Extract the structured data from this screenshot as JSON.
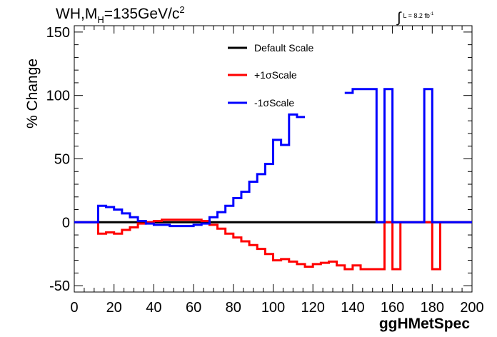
{
  "header": {
    "title_prefix": "WH,M",
    "title_sub": "H",
    "title_value": "=135GeV/c",
    "title_sup": "2",
    "lumi_integral": "∫",
    "lumi_text": "L = 8.2 fb",
    "lumi_sup": "-1"
  },
  "legend": {
    "items": [
      {
        "label": "Default Scale",
        "color": "#000000"
      },
      {
        "label": "+1σScale",
        "color": "#ff0000"
      },
      {
        "label": "-1σScale",
        "color": "#0000ff"
      }
    ]
  },
  "colors": {
    "default": "#000000",
    "plus": "#ff0000",
    "minus": "#0000ff",
    "frame": "#000000"
  },
  "chart_data": {
    "type": "line",
    "title": "WH,M_H=135GeV/c^2",
    "xlabel": "ggHMetSpec",
    "ylabel": "% Change",
    "xlim": [
      0,
      200
    ],
    "ylim": [
      -55,
      155
    ],
    "x_ticks": [
      0,
      20,
      40,
      60,
      80,
      100,
      120,
      140,
      160,
      180,
      200
    ],
    "y_ticks": [
      -50,
      0,
      50,
      100,
      150
    ],
    "grid": false,
    "legend_position": "top-center",
    "bin_edges": [
      0,
      4,
      8,
      12,
      16,
      20,
      24,
      28,
      32,
      36,
      40,
      44,
      48,
      52,
      56,
      60,
      64,
      68,
      72,
      76,
      80,
      84,
      88,
      92,
      96,
      100,
      104,
      108,
      112,
      116,
      120,
      124,
      128,
      132,
      136,
      140,
      144,
      148,
      152,
      156,
      160,
      164,
      168,
      172,
      176,
      180,
      184,
      188,
      192,
      196,
      200
    ],
    "series": [
      {
        "name": "Default Scale",
        "values": [
          0,
          0,
          0,
          0,
          0,
          0,
          0,
          0,
          0,
          0,
          0,
          0,
          0,
          0,
          0,
          0,
          0,
          0,
          0,
          0,
          0,
          0,
          0,
          0,
          0,
          0,
          0,
          0,
          0,
          0,
          0,
          0,
          0,
          0,
          0,
          0,
          0,
          0,
          0,
          0,
          0,
          0,
          0,
          0,
          0,
          0,
          0,
          0,
          0,
          0
        ]
      },
      {
        "name": "+1σScale",
        "values": [
          0,
          0,
          0,
          -9,
          -8,
          -9,
          -6,
          -4,
          -1,
          0,
          1,
          2,
          2,
          2,
          2,
          2,
          1,
          -2,
          -5,
          -9,
          -12,
          -15,
          -18,
          -21,
          -25,
          -30,
          -29,
          -31,
          -33,
          -35,
          -33,
          -32,
          -31,
          -34,
          -37,
          -34,
          -37,
          -37,
          -37,
          0,
          -37,
          0,
          0,
          0,
          0,
          -37,
          0,
          0,
          0,
          0
        ]
      },
      {
        "name": "-1σScale",
        "values": [
          0,
          0,
          0,
          13,
          12,
          10,
          7,
          4,
          1,
          -1,
          -2,
          -2,
          -3,
          -3,
          -3,
          -2,
          -1,
          4,
          8,
          13,
          19,
          24,
          32,
          38,
          46,
          65,
          61,
          85,
          83,
          null,
          null,
          null,
          null,
          null,
          102,
          105,
          105,
          105,
          0,
          105,
          0,
          0,
          0,
          0,
          105,
          0,
          0,
          0,
          0,
          0
        ]
      }
    ]
  }
}
